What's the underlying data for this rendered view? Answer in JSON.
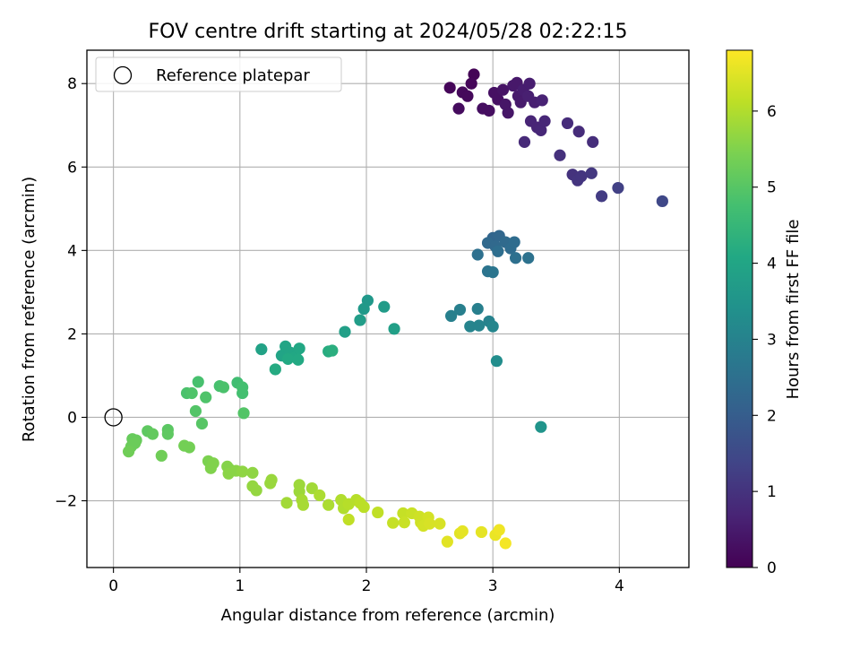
{
  "chart_data": {
    "type": "scatter",
    "title": "FOV centre drift starting at 2024/05/28 02:22:15",
    "xlabel": "Angular distance from reference (arcmin)",
    "ylabel": "Rotation from reference (arcmin)",
    "xlim": [
      -0.21,
      4.55
    ],
    "ylim": [
      -3.6,
      8.8
    ],
    "xticks": [
      0,
      1,
      2,
      3,
      4
    ],
    "xtick_labels": [
      "0",
      "1",
      "2",
      "3",
      "4"
    ],
    "yticks": [
      -2,
      0,
      2,
      4,
      6,
      8
    ],
    "ytick_labels": [
      "−2",
      "0",
      "2",
      "4",
      "6",
      "8"
    ],
    "grid": true,
    "legend": {
      "position": "top-left",
      "entries": [
        "Reference platepar"
      ]
    },
    "colorbar": {
      "label": "Hours from first FF file",
      "colormap": "viridis",
      "range": [
        0,
        6.8
      ],
      "ticks": [
        0,
        1,
        2,
        3,
        4,
        5,
        6
      ],
      "tick_labels": [
        "0",
        "1",
        "2",
        "3",
        "4",
        "5",
        "6"
      ]
    },
    "reference_point": {
      "name": "Reference platepar",
      "x": 0,
      "y": 0
    },
    "series": [
      {
        "color_by": "Hours from first FF file",
        "points": [
          {
            "x": 2.85,
            "y": 8.22,
            "c": 0.05
          },
          {
            "x": 2.83,
            "y": 8.0,
            "c": 0.1
          },
          {
            "x": 2.66,
            "y": 7.9,
            "c": 0.1
          },
          {
            "x": 2.76,
            "y": 7.79,
            "c": 0.15
          },
          {
            "x": 2.8,
            "y": 7.7,
            "c": 0.15
          },
          {
            "x": 2.73,
            "y": 7.4,
            "c": 0.2
          },
          {
            "x": 2.92,
            "y": 7.4,
            "c": 0.25
          },
          {
            "x": 2.97,
            "y": 7.35,
            "c": 0.25
          },
          {
            "x": 3.01,
            "y": 7.78,
            "c": 0.3
          },
          {
            "x": 3.04,
            "y": 7.62,
            "c": 0.3
          },
          {
            "x": 3.08,
            "y": 7.85,
            "c": 0.35
          },
          {
            "x": 3.1,
            "y": 7.5,
            "c": 0.4
          },
          {
            "x": 3.12,
            "y": 7.3,
            "c": 0.4
          },
          {
            "x": 3.16,
            "y": 7.95,
            "c": 0.45
          },
          {
            "x": 3.19,
            "y": 8.02,
            "c": 0.45
          },
          {
            "x": 3.2,
            "y": 7.7,
            "c": 0.5
          },
          {
            "x": 3.22,
            "y": 7.55,
            "c": 0.5
          },
          {
            "x": 3.24,
            "y": 7.85,
            "c": 0.55
          },
          {
            "x": 3.29,
            "y": 8.0,
            "c": 0.55
          },
          {
            "x": 3.28,
            "y": 7.7,
            "c": 0.6
          },
          {
            "x": 3.33,
            "y": 7.55,
            "c": 0.6
          },
          {
            "x": 3.39,
            "y": 7.6,
            "c": 0.65
          },
          {
            "x": 3.3,
            "y": 7.1,
            "c": 0.7
          },
          {
            "x": 3.35,
            "y": 6.95,
            "c": 0.7
          },
          {
            "x": 3.38,
            "y": 6.88,
            "c": 0.75
          },
          {
            "x": 3.41,
            "y": 7.1,
            "c": 0.75
          },
          {
            "x": 3.25,
            "y": 6.6,
            "c": 0.8
          },
          {
            "x": 3.59,
            "y": 7.05,
            "c": 0.85
          },
          {
            "x": 3.68,
            "y": 6.85,
            "c": 0.85
          },
          {
            "x": 3.79,
            "y": 6.6,
            "c": 0.9
          },
          {
            "x": 3.53,
            "y": 6.28,
            "c": 0.95
          },
          {
            "x": 3.63,
            "y": 5.82,
            "c": 1.0
          },
          {
            "x": 3.67,
            "y": 5.68,
            "c": 1.05
          },
          {
            "x": 3.7,
            "y": 5.78,
            "c": 1.05
          },
          {
            "x": 3.78,
            "y": 5.85,
            "c": 1.1
          },
          {
            "x": 3.86,
            "y": 5.3,
            "c": 1.2
          },
          {
            "x": 3.99,
            "y": 5.5,
            "c": 1.3
          },
          {
            "x": 4.34,
            "y": 5.18,
            "c": 1.45
          },
          {
            "x": 3.0,
            "y": 4.3,
            "c": 2.2
          },
          {
            "x": 3.05,
            "y": 4.35,
            "c": 2.25
          },
          {
            "x": 2.96,
            "y": 4.18,
            "c": 2.3
          },
          {
            "x": 3.02,
            "y": 4.1,
            "c": 2.3
          },
          {
            "x": 3.1,
            "y": 4.2,
            "c": 2.35
          },
          {
            "x": 3.14,
            "y": 4.05,
            "c": 2.4
          },
          {
            "x": 3.17,
            "y": 4.2,
            "c": 2.4
          },
          {
            "x": 3.04,
            "y": 3.98,
            "c": 2.45
          },
          {
            "x": 2.88,
            "y": 3.9,
            "c": 2.5
          },
          {
            "x": 3.18,
            "y": 3.82,
            "c": 2.5
          },
          {
            "x": 3.28,
            "y": 3.82,
            "c": 2.55
          },
          {
            "x": 2.96,
            "y": 3.5,
            "c": 2.6
          },
          {
            "x": 3.0,
            "y": 3.48,
            "c": 2.65
          },
          {
            "x": 2.88,
            "y": 2.6,
            "c": 2.9
          },
          {
            "x": 2.74,
            "y": 2.58,
            "c": 2.9
          },
          {
            "x": 2.67,
            "y": 2.43,
            "c": 2.95
          },
          {
            "x": 2.97,
            "y": 2.3,
            "c": 3.0
          },
          {
            "x": 2.82,
            "y": 2.18,
            "c": 3.05
          },
          {
            "x": 2.89,
            "y": 2.2,
            "c": 3.05
          },
          {
            "x": 3.0,
            "y": 2.18,
            "c": 3.1
          },
          {
            "x": 3.03,
            "y": 1.35,
            "c": 3.3
          },
          {
            "x": 3.38,
            "y": -0.23,
            "c": 3.5
          },
          {
            "x": 2.01,
            "y": 2.8,
            "c": 3.6
          },
          {
            "x": 1.98,
            "y": 2.6,
            "c": 3.65
          },
          {
            "x": 2.14,
            "y": 2.65,
            "c": 3.7
          },
          {
            "x": 1.95,
            "y": 2.33,
            "c": 3.75
          },
          {
            "x": 1.83,
            "y": 2.05,
            "c": 3.8
          },
          {
            "x": 2.22,
            "y": 2.12,
            "c": 3.8
          },
          {
            "x": 1.17,
            "y": 1.63,
            "c": 3.9
          },
          {
            "x": 1.33,
            "y": 1.48,
            "c": 3.95
          },
          {
            "x": 1.36,
            "y": 1.7,
            "c": 4.0
          },
          {
            "x": 1.4,
            "y": 1.55,
            "c": 4.0
          },
          {
            "x": 1.44,
            "y": 1.45,
            "c": 4.05
          },
          {
            "x": 1.47,
            "y": 1.65,
            "c": 4.05
          },
          {
            "x": 1.38,
            "y": 1.4,
            "c": 4.1
          },
          {
            "x": 1.46,
            "y": 1.38,
            "c": 4.1
          },
          {
            "x": 1.28,
            "y": 1.15,
            "c": 4.15
          },
          {
            "x": 1.7,
            "y": 1.58,
            "c": 4.2
          },
          {
            "x": 1.73,
            "y": 1.6,
            "c": 4.25
          },
          {
            "x": 0.98,
            "y": 0.83,
            "c": 4.7
          },
          {
            "x": 1.02,
            "y": 0.72,
            "c": 4.75
          },
          {
            "x": 1.02,
            "y": 0.58,
            "c": 4.75
          },
          {
            "x": 0.67,
            "y": 0.85,
            "c": 4.8
          },
          {
            "x": 0.84,
            "y": 0.75,
            "c": 4.8
          },
          {
            "x": 0.87,
            "y": 0.72,
            "c": 4.85
          },
          {
            "x": 0.58,
            "y": 0.58,
            "c": 4.85
          },
          {
            "x": 0.62,
            "y": 0.58,
            "c": 4.9
          },
          {
            "x": 0.73,
            "y": 0.48,
            "c": 4.9
          },
          {
            "x": 0.65,
            "y": 0.15,
            "c": 4.95
          },
          {
            "x": 1.03,
            "y": 0.1,
            "c": 4.95
          },
          {
            "x": 0.7,
            "y": -0.15,
            "c": 5.0
          },
          {
            "x": 0.43,
            "y": -0.3,
            "c": 5.05
          },
          {
            "x": 0.43,
            "y": -0.4,
            "c": 5.1
          },
          {
            "x": 0.27,
            "y": -0.33,
            "c": 5.1
          },
          {
            "x": 0.31,
            "y": -0.4,
            "c": 5.15
          },
          {
            "x": 0.15,
            "y": -0.52,
            "c": 5.2
          },
          {
            "x": 0.18,
            "y": -0.55,
            "c": 5.2
          },
          {
            "x": 0.17,
            "y": -0.62,
            "c": 5.25
          },
          {
            "x": 0.14,
            "y": -0.7,
            "c": 5.25
          },
          {
            "x": 0.12,
            "y": -0.82,
            "c": 5.3
          },
          {
            "x": 0.38,
            "y": -0.92,
            "c": 5.3
          },
          {
            "x": 0.56,
            "y": -0.68,
            "c": 5.35
          },
          {
            "x": 0.6,
            "y": -0.72,
            "c": 5.35
          },
          {
            "x": 0.75,
            "y": -1.05,
            "c": 5.45
          },
          {
            "x": 0.79,
            "y": -1.1,
            "c": 5.5
          },
          {
            "x": 0.77,
            "y": -1.22,
            "c": 5.5
          },
          {
            "x": 0.9,
            "y": -1.18,
            "c": 5.55
          },
          {
            "x": 0.92,
            "y": -1.25,
            "c": 5.55
          },
          {
            "x": 0.91,
            "y": -1.35,
            "c": 5.6
          },
          {
            "x": 0.97,
            "y": -1.28,
            "c": 5.6
          },
          {
            "x": 1.02,
            "y": -1.3,
            "c": 5.65
          },
          {
            "x": 1.1,
            "y": -1.33,
            "c": 5.65
          },
          {
            "x": 1.1,
            "y": -1.65,
            "c": 5.7
          },
          {
            "x": 1.13,
            "y": -1.75,
            "c": 5.7
          },
          {
            "x": 1.24,
            "y": -1.58,
            "c": 5.75
          },
          {
            "x": 1.25,
            "y": -1.5,
            "c": 5.75
          },
          {
            "x": 1.47,
            "y": -1.62,
            "c": 5.8
          },
          {
            "x": 1.47,
            "y": -1.78,
            "c": 5.8
          },
          {
            "x": 1.57,
            "y": -1.7,
            "c": 5.85
          },
          {
            "x": 1.37,
            "y": -2.05,
            "c": 5.85
          },
          {
            "x": 1.49,
            "y": -1.98,
            "c": 5.9
          },
          {
            "x": 1.5,
            "y": -2.1,
            "c": 5.9
          },
          {
            "x": 1.63,
            "y": -1.87,
            "c": 5.95
          },
          {
            "x": 1.7,
            "y": -2.1,
            "c": 5.95
          },
          {
            "x": 1.8,
            "y": -1.98,
            "c": 6.0
          },
          {
            "x": 1.82,
            "y": -2.18,
            "c": 6.0
          },
          {
            "x": 1.86,
            "y": -2.08,
            "c": 6.05
          },
          {
            "x": 1.92,
            "y": -1.98,
            "c": 6.05
          },
          {
            "x": 1.95,
            "y": -2.05,
            "c": 6.1
          },
          {
            "x": 1.98,
            "y": -2.15,
            "c": 6.1
          },
          {
            "x": 1.86,
            "y": -2.45,
            "c": 6.15
          },
          {
            "x": 2.09,
            "y": -2.28,
            "c": 6.15
          },
          {
            "x": 2.21,
            "y": -2.53,
            "c": 6.2
          },
          {
            "x": 2.29,
            "y": -2.3,
            "c": 6.2
          },
          {
            "x": 2.3,
            "y": -2.52,
            "c": 6.25
          },
          {
            "x": 2.36,
            "y": -2.3,
            "c": 6.25
          },
          {
            "x": 2.42,
            "y": -2.38,
            "c": 6.3
          },
          {
            "x": 2.43,
            "y": -2.52,
            "c": 6.3
          },
          {
            "x": 2.45,
            "y": -2.6,
            "c": 6.35
          },
          {
            "x": 2.49,
            "y": -2.4,
            "c": 6.35
          },
          {
            "x": 2.5,
            "y": -2.55,
            "c": 6.4
          },
          {
            "x": 2.58,
            "y": -2.55,
            "c": 6.4
          },
          {
            "x": 2.64,
            "y": -2.98,
            "c": 6.5
          },
          {
            "x": 2.74,
            "y": -2.78,
            "c": 6.5
          },
          {
            "x": 2.76,
            "y": -2.73,
            "c": 6.55
          },
          {
            "x": 2.91,
            "y": -2.75,
            "c": 6.55
          },
          {
            "x": 3.02,
            "y": -2.82,
            "c": 6.6
          },
          {
            "x": 3.05,
            "y": -2.7,
            "c": 6.65
          },
          {
            "x": 3.1,
            "y": -3.02,
            "c": 6.7
          }
        ]
      }
    ]
  }
}
